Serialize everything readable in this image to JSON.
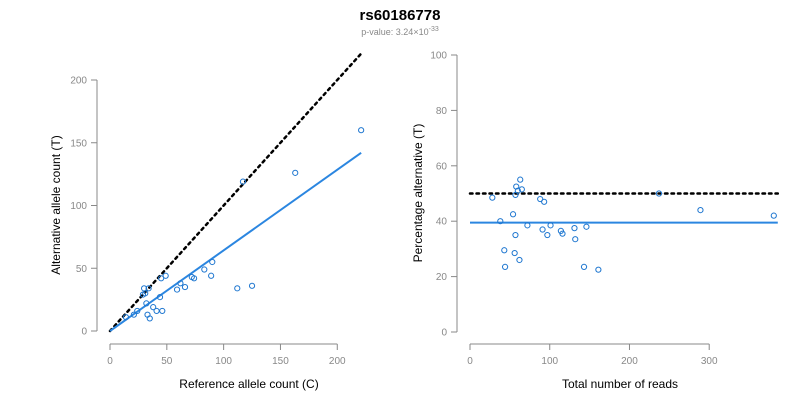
{
  "title": "rs60186778",
  "subtitle": {
    "prefix": "p-value: ",
    "mantissa": "3.24",
    "times": "×",
    "base": "10",
    "exponent": "-33"
  },
  "colors": {
    "points": "#1f77d0",
    "fit_line": "#2b86e0",
    "reference_line": "#000000",
    "axis": "#888888"
  },
  "chart_data": [
    {
      "type": "scatter",
      "xlabel": "Reference allele count (C)",
      "ylabel": "Alternative allele count (T)",
      "xlim": [
        0,
        220
      ],
      "ylim": [
        0,
        200
      ],
      "xticks": [
        0,
        50,
        100,
        150,
        200
      ],
      "yticks": [
        0,
        50,
        100,
        150,
        200
      ],
      "points": [
        {
          "x": 14,
          "y": 11
        },
        {
          "x": 21,
          "y": 13
        },
        {
          "x": 24,
          "y": 16
        },
        {
          "x": 29,
          "y": 29
        },
        {
          "x": 30,
          "y": 34
        },
        {
          "x": 31,
          "y": 30
        },
        {
          "x": 32,
          "y": 22
        },
        {
          "x": 33,
          "y": 13
        },
        {
          "x": 34,
          "y": 34
        },
        {
          "x": 35,
          "y": 10
        },
        {
          "x": 38,
          "y": 19
        },
        {
          "x": 41,
          "y": 16
        },
        {
          "x": 44,
          "y": 27
        },
        {
          "x": 45,
          "y": 42
        },
        {
          "x": 46,
          "y": 16
        },
        {
          "x": 49,
          "y": 44
        },
        {
          "x": 59,
          "y": 33
        },
        {
          "x": 62,
          "y": 38
        },
        {
          "x": 66,
          "y": 35
        },
        {
          "x": 72,
          "y": 43
        },
        {
          "x": 74,
          "y": 42
        },
        {
          "x": 83,
          "y": 49
        },
        {
          "x": 89,
          "y": 44
        },
        {
          "x": 90,
          "y": 55
        },
        {
          "x": 112,
          "y": 34
        },
        {
          "x": 117,
          "y": 119
        },
        {
          "x": 125,
          "y": 36
        },
        {
          "x": 163,
          "y": 126
        },
        {
          "x": 221,
          "y": 160
        }
      ],
      "fit_line": {
        "x": [
          0,
          221
        ],
        "y": [
          0,
          142
        ]
      },
      "reference_line": {
        "x": [
          0,
          221
        ],
        "y": [
          0,
          221
        ],
        "style": "dotted"
      }
    },
    {
      "type": "scatter",
      "xlabel": "Total number of reads",
      "ylabel": "Percentage alternative (T)",
      "xlim": [
        0,
        380
      ],
      "ylim": [
        0,
        100
      ],
      "xticks": [
        0,
        100,
        200,
        300
      ],
      "yticks": [
        0,
        20,
        40,
        60,
        80,
        100
      ],
      "points": [
        {
          "x": 28,
          "y": 48.5
        },
        {
          "x": 38,
          "y": 40
        },
        {
          "x": 43,
          "y": 29.5
        },
        {
          "x": 44,
          "y": 23.5
        },
        {
          "x": 54,
          "y": 42.5
        },
        {
          "x": 56,
          "y": 28.5
        },
        {
          "x": 57,
          "y": 35
        },
        {
          "x": 57,
          "y": 49.5
        },
        {
          "x": 58,
          "y": 52.5
        },
        {
          "x": 60,
          "y": 51
        },
        {
          "x": 62,
          "y": 26
        },
        {
          "x": 63,
          "y": 55
        },
        {
          "x": 65,
          "y": 51.5
        },
        {
          "x": 72,
          "y": 38.5
        },
        {
          "x": 88,
          "y": 48
        },
        {
          "x": 91,
          "y": 37
        },
        {
          "x": 93,
          "y": 47
        },
        {
          "x": 97,
          "y": 35
        },
        {
          "x": 101,
          "y": 38.5
        },
        {
          "x": 114,
          "y": 36.5
        },
        {
          "x": 116,
          "y": 35.5
        },
        {
          "x": 131,
          "y": 37.5
        },
        {
          "x": 132,
          "y": 33.5
        },
        {
          "x": 143,
          "y": 23.5
        },
        {
          "x": 146,
          "y": 38
        },
        {
          "x": 161,
          "y": 22.5
        },
        {
          "x": 237,
          "y": 50
        },
        {
          "x": 289,
          "y": 44
        },
        {
          "x": 381,
          "y": 42
        }
      ],
      "fit_line": {
        "x": [
          0,
          386
        ],
        "y": [
          39.5,
          39.5
        ]
      },
      "reference_line": {
        "x": [
          0,
          386
        ],
        "y": [
          50,
          50
        ],
        "style": "dotted"
      }
    }
  ]
}
